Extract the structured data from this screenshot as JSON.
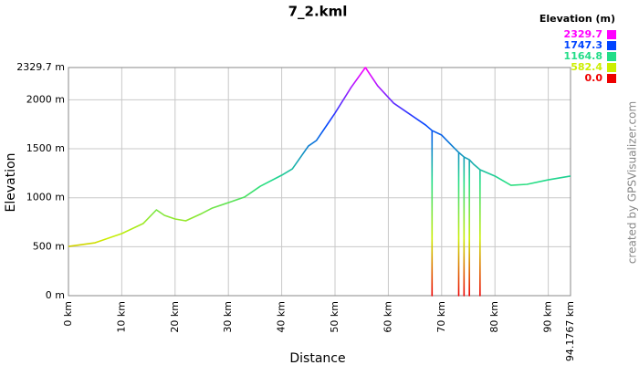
{
  "chart_data": {
    "type": "line",
    "title": "7_2.kml",
    "x_label": "Distance",
    "y_label": "Elevation",
    "watermark": "created by GPSVisualizer.com",
    "x": [
      0,
      5,
      10,
      14,
      16.5,
      18,
      20,
      22,
      25,
      27,
      30,
      33,
      36,
      40,
      42,
      45,
      46.5,
      50,
      53,
      55.7,
      58,
      61,
      64,
      67,
      68.2,
      68.2,
      68.2,
      70,
      72,
      73.2,
      73.2,
      73.2,
      74.2,
      74.2,
      74.2,
      75.2,
      75.2,
      75.2,
      76,
      77.2,
      77.2,
      77.2,
      80,
      83,
      86,
      90,
      94.1767
    ],
    "values": [
      503,
      540,
      634,
      736,
      876,
      820,
      783,
      764,
      839,
      895,
      950,
      1006,
      1118,
      1230,
      1295,
      1528,
      1584,
      1864,
      2125,
      2329.7,
      2143,
      1966,
      1854,
      1742,
      1686,
      0,
      1686,
      1640,
      1528,
      1463,
      0,
      1463,
      1416,
      0,
      1416,
      1388,
      0,
      1388,
      1342,
      1286,
      0,
      1286,
      1221,
      1127,
      1137,
      1183,
      1221
    ],
    "xlim": [
      0,
      94.1767
    ],
    "xticks": [
      {
        "value": 0,
        "label": "0 km"
      },
      {
        "value": 10,
        "label": "10 km"
      },
      {
        "value": 20,
        "label": "20 km"
      },
      {
        "value": 30,
        "label": "30 km"
      },
      {
        "value": 40,
        "label": "40 km"
      },
      {
        "value": 50,
        "label": "50 km"
      },
      {
        "value": 60,
        "label": "60 km"
      },
      {
        "value": 70,
        "label": "70 km"
      },
      {
        "value": 80,
        "label": "80 km"
      },
      {
        "value": 90,
        "label": "90 km"
      },
      {
        "value": 94.1767,
        "label": "94.1767 km"
      }
    ],
    "ylim": [
      0,
      2329.7
    ],
    "yticks": [
      {
        "value": 0,
        "label": "0 m"
      },
      {
        "value": 500,
        "label": "500 m"
      },
      {
        "value": 1000,
        "label": "1000 m"
      },
      {
        "value": 1500,
        "label": "1500 m"
      },
      {
        "value": 2000,
        "label": "2000 m"
      },
      {
        "value": 2329.7,
        "label": "2329.7 m"
      }
    ],
    "grid": true,
    "color_scale": {
      "title": "Elevation (m)",
      "stops": [
        {
          "value": 2329.7,
          "color": "#ff00ff"
        },
        {
          "value": 1747.3,
          "color": "#0044ff"
        },
        {
          "value": 1164.8,
          "color": "#22dd88"
        },
        {
          "value": 582.4,
          "color": "#ccee00"
        },
        {
          "value": 0,
          "label": "0.0",
          "color": "#ee0000"
        }
      ]
    }
  }
}
